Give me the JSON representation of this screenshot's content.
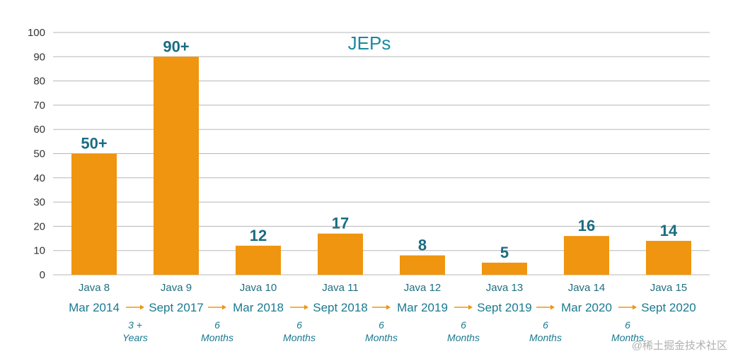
{
  "chart_data": {
    "type": "bar",
    "title": "JEPs",
    "categories": [
      "Java 8",
      "Java 9",
      "Java 10",
      "Java 11",
      "Java 12",
      "Java 13",
      "Java 14",
      "Java 15"
    ],
    "values": [
      50,
      90,
      12,
      17,
      8,
      5,
      16,
      14
    ],
    "data_labels": [
      "50+",
      "90+",
      "12",
      "17",
      "8",
      "5",
      "16",
      "14"
    ],
    "ylim": [
      0,
      100
    ],
    "yticks": [
      0,
      10,
      20,
      30,
      40,
      50,
      60,
      70,
      80,
      90,
      100
    ],
    "grid": true,
    "release_dates": [
      "Mar 2014",
      "Sept 2017",
      "Mar 2018",
      "Sept 2018",
      "Mar 2019",
      "Sept 2019",
      "Mar 2020",
      "Sept 2020"
    ],
    "intervals": [
      [
        "3 +",
        "Years"
      ],
      [
        "6",
        "Months"
      ],
      [
        "6",
        "Months"
      ],
      [
        "6",
        "Months"
      ],
      [
        "6",
        "Months"
      ],
      [
        "6",
        "Months"
      ],
      [
        "6",
        "Months"
      ]
    ],
    "colors": {
      "bar": "#f0950f",
      "label": "#1a6d82",
      "title": "#1a8aa0"
    }
  },
  "watermark": "@稀土掘金技术社区"
}
